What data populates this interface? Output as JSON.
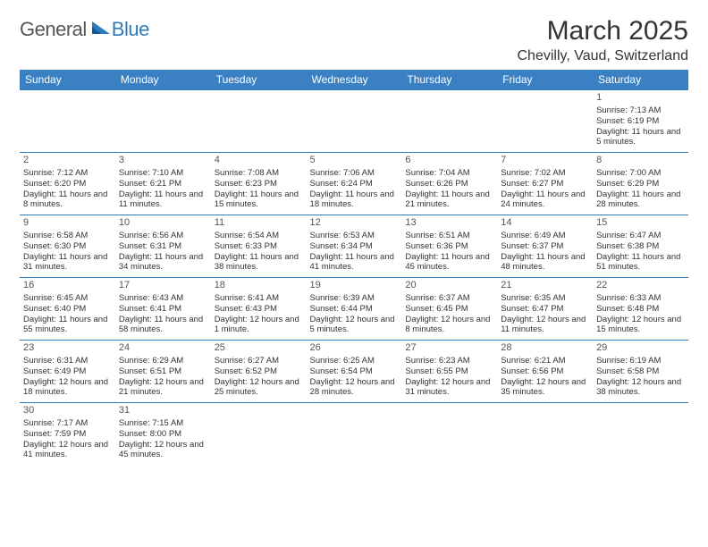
{
  "logo": {
    "general": "General",
    "blue": "Blue"
  },
  "title": {
    "month": "March 2025",
    "location": "Chevilly, Vaud, Switzerland"
  },
  "colors": {
    "header_bg": "#3a80c3",
    "header_text": "#ffffff",
    "cell_border": "#2b7bbd",
    "text": "#333333",
    "logo_gray": "#555555",
    "logo_blue": "#2b7bbd"
  },
  "day_headers": [
    "Sunday",
    "Monday",
    "Tuesday",
    "Wednesday",
    "Thursday",
    "Friday",
    "Saturday"
  ],
  "weeks": [
    [
      null,
      null,
      null,
      null,
      null,
      null,
      {
        "n": "1",
        "sr": "Sunrise: 7:13 AM",
        "ss": "Sunset: 6:19 PM",
        "dl": "Daylight: 11 hours and 5 minutes."
      }
    ],
    [
      {
        "n": "2",
        "sr": "Sunrise: 7:12 AM",
        "ss": "Sunset: 6:20 PM",
        "dl": "Daylight: 11 hours and 8 minutes."
      },
      {
        "n": "3",
        "sr": "Sunrise: 7:10 AM",
        "ss": "Sunset: 6:21 PM",
        "dl": "Daylight: 11 hours and 11 minutes."
      },
      {
        "n": "4",
        "sr": "Sunrise: 7:08 AM",
        "ss": "Sunset: 6:23 PM",
        "dl": "Daylight: 11 hours and 15 minutes."
      },
      {
        "n": "5",
        "sr": "Sunrise: 7:06 AM",
        "ss": "Sunset: 6:24 PM",
        "dl": "Daylight: 11 hours and 18 minutes."
      },
      {
        "n": "6",
        "sr": "Sunrise: 7:04 AM",
        "ss": "Sunset: 6:26 PM",
        "dl": "Daylight: 11 hours and 21 minutes."
      },
      {
        "n": "7",
        "sr": "Sunrise: 7:02 AM",
        "ss": "Sunset: 6:27 PM",
        "dl": "Daylight: 11 hours and 24 minutes."
      },
      {
        "n": "8",
        "sr": "Sunrise: 7:00 AM",
        "ss": "Sunset: 6:29 PM",
        "dl": "Daylight: 11 hours and 28 minutes."
      }
    ],
    [
      {
        "n": "9",
        "sr": "Sunrise: 6:58 AM",
        "ss": "Sunset: 6:30 PM",
        "dl": "Daylight: 11 hours and 31 minutes."
      },
      {
        "n": "10",
        "sr": "Sunrise: 6:56 AM",
        "ss": "Sunset: 6:31 PM",
        "dl": "Daylight: 11 hours and 34 minutes."
      },
      {
        "n": "11",
        "sr": "Sunrise: 6:54 AM",
        "ss": "Sunset: 6:33 PM",
        "dl": "Daylight: 11 hours and 38 minutes."
      },
      {
        "n": "12",
        "sr": "Sunrise: 6:53 AM",
        "ss": "Sunset: 6:34 PM",
        "dl": "Daylight: 11 hours and 41 minutes."
      },
      {
        "n": "13",
        "sr": "Sunrise: 6:51 AM",
        "ss": "Sunset: 6:36 PM",
        "dl": "Daylight: 11 hours and 45 minutes."
      },
      {
        "n": "14",
        "sr": "Sunrise: 6:49 AM",
        "ss": "Sunset: 6:37 PM",
        "dl": "Daylight: 11 hours and 48 minutes."
      },
      {
        "n": "15",
        "sr": "Sunrise: 6:47 AM",
        "ss": "Sunset: 6:38 PM",
        "dl": "Daylight: 11 hours and 51 minutes."
      }
    ],
    [
      {
        "n": "16",
        "sr": "Sunrise: 6:45 AM",
        "ss": "Sunset: 6:40 PM",
        "dl": "Daylight: 11 hours and 55 minutes."
      },
      {
        "n": "17",
        "sr": "Sunrise: 6:43 AM",
        "ss": "Sunset: 6:41 PM",
        "dl": "Daylight: 11 hours and 58 minutes."
      },
      {
        "n": "18",
        "sr": "Sunrise: 6:41 AM",
        "ss": "Sunset: 6:43 PM",
        "dl": "Daylight: 12 hours and 1 minute."
      },
      {
        "n": "19",
        "sr": "Sunrise: 6:39 AM",
        "ss": "Sunset: 6:44 PM",
        "dl": "Daylight: 12 hours and 5 minutes."
      },
      {
        "n": "20",
        "sr": "Sunrise: 6:37 AM",
        "ss": "Sunset: 6:45 PM",
        "dl": "Daylight: 12 hours and 8 minutes."
      },
      {
        "n": "21",
        "sr": "Sunrise: 6:35 AM",
        "ss": "Sunset: 6:47 PM",
        "dl": "Daylight: 12 hours and 11 minutes."
      },
      {
        "n": "22",
        "sr": "Sunrise: 6:33 AM",
        "ss": "Sunset: 6:48 PM",
        "dl": "Daylight: 12 hours and 15 minutes."
      }
    ],
    [
      {
        "n": "23",
        "sr": "Sunrise: 6:31 AM",
        "ss": "Sunset: 6:49 PM",
        "dl": "Daylight: 12 hours and 18 minutes."
      },
      {
        "n": "24",
        "sr": "Sunrise: 6:29 AM",
        "ss": "Sunset: 6:51 PM",
        "dl": "Daylight: 12 hours and 21 minutes."
      },
      {
        "n": "25",
        "sr": "Sunrise: 6:27 AM",
        "ss": "Sunset: 6:52 PM",
        "dl": "Daylight: 12 hours and 25 minutes."
      },
      {
        "n": "26",
        "sr": "Sunrise: 6:25 AM",
        "ss": "Sunset: 6:54 PM",
        "dl": "Daylight: 12 hours and 28 minutes."
      },
      {
        "n": "27",
        "sr": "Sunrise: 6:23 AM",
        "ss": "Sunset: 6:55 PM",
        "dl": "Daylight: 12 hours and 31 minutes."
      },
      {
        "n": "28",
        "sr": "Sunrise: 6:21 AM",
        "ss": "Sunset: 6:56 PM",
        "dl": "Daylight: 12 hours and 35 minutes."
      },
      {
        "n": "29",
        "sr": "Sunrise: 6:19 AM",
        "ss": "Sunset: 6:58 PM",
        "dl": "Daylight: 12 hours and 38 minutes."
      }
    ],
    [
      {
        "n": "30",
        "sr": "Sunrise: 7:17 AM",
        "ss": "Sunset: 7:59 PM",
        "dl": "Daylight: 12 hours and 41 minutes."
      },
      {
        "n": "31",
        "sr": "Sunrise: 7:15 AM",
        "ss": "Sunset: 8:00 PM",
        "dl": "Daylight: 12 hours and 45 minutes."
      },
      null,
      null,
      null,
      null,
      null
    ]
  ]
}
